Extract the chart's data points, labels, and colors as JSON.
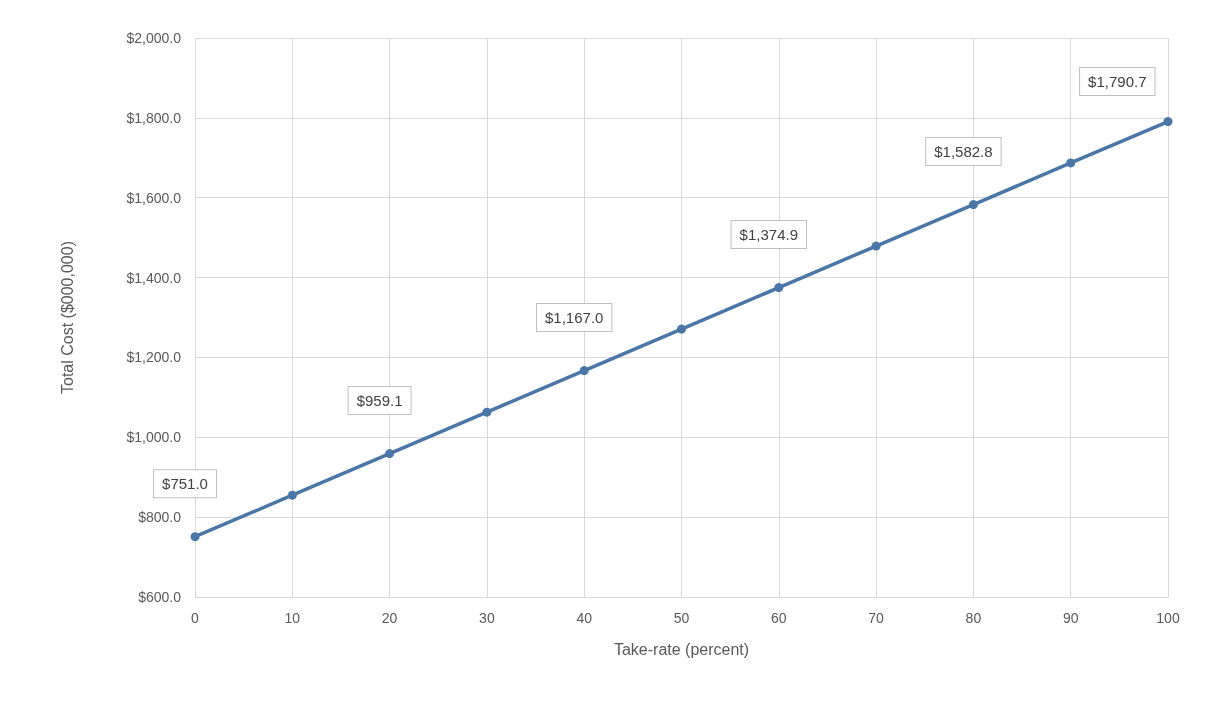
{
  "chart_data": {
    "type": "line",
    "xlabel": "Take-rate (percent)",
    "ylabel": "Total Cost ($000,000)",
    "x": [
      0,
      10,
      20,
      30,
      40,
      50,
      60,
      70,
      80,
      90,
      100
    ],
    "series": [
      {
        "color": "#4a76a8",
        "values": [
          751.0,
          855,
          959.1,
          1063,
          1167.0,
          1271,
          1374.9,
          1479,
          1582.8,
          1687,
          1790.7
        ],
        "value_labels": [
          "$751.0",
          null,
          "$959.1",
          null,
          "$1,167.0",
          null,
          "$1,374.9",
          null,
          "$1,582.8",
          null,
          "$1,790.7"
        ]
      }
    ],
    "xlim": [
      0,
      100
    ],
    "xticks": [
      0,
      10,
      20,
      30,
      40,
      50,
      60,
      70,
      80,
      90,
      100
    ],
    "ylim": [
      600,
      2000
    ],
    "yticks": [
      {
        "value": 600,
        "label": "$600.0"
      },
      {
        "value": 800,
        "label": "$800.0"
      },
      {
        "value": 1000,
        "label": "$1,000.0"
      },
      {
        "value": 1200,
        "label": "$1,200.0"
      },
      {
        "value": 1400,
        "label": "$1,400.0"
      },
      {
        "value": 1600,
        "label": "$1,600.0"
      },
      {
        "value": 1800,
        "label": "$1,800.0"
      },
      {
        "value": 2000,
        "label": "$2,000.0"
      }
    ],
    "grid": true,
    "marker": "circle",
    "line_style": "solid"
  }
}
